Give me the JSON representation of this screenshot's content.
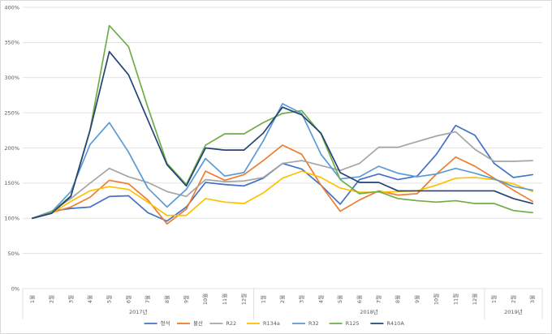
{
  "chart_data": {
    "type": "line",
    "title": "",
    "xlabel": "",
    "ylabel": "",
    "ylim": [
      0,
      400
    ],
    "y_ticks": [
      "0%",
      "50%",
      "100%",
      "150%",
      "200%",
      "250%",
      "300%",
      "350%",
      "400%"
    ],
    "grid": "horizontal",
    "legend_position": "bottom",
    "categories": [
      "1월",
      "2월",
      "3월",
      "4월",
      "5월",
      "6월",
      "7월",
      "8월",
      "9월",
      "10월",
      "11월",
      "12월",
      "1월",
      "2월",
      "3월",
      "4월",
      "5월",
      "6월",
      "7월",
      "8월",
      "9월",
      "10월",
      "11월",
      "12월",
      "1월",
      "2월",
      "3월"
    ],
    "year_groups": [
      {
        "label": "2017년",
        "count": 12
      },
      {
        "label": "2018년",
        "count": 12
      },
      {
        "label": "2019년",
        "count": 3
      }
    ],
    "series": [
      {
        "name": "형석",
        "color": "#4472C4",
        "values": [
          100,
          110,
          114,
          116,
          131,
          132,
          108,
          96,
          116,
          151,
          148,
          146,
          157,
          178,
          170,
          147,
          120,
          155,
          163,
          155,
          160,
          191,
          232,
          218,
          178,
          158,
          162
        ]
      },
      {
        "name": "불산",
        "color": "#ED7D31",
        "values": [
          100,
          108,
          116,
          130,
          154,
          149,
          126,
          92,
          113,
          167,
          154,
          162,
          182,
          204,
          191,
          147,
          110,
          126,
          139,
          133,
          135,
          163,
          187,
          174,
          157,
          140,
          124
        ]
      },
      {
        "name": "R22",
        "color": "#A5A5A5",
        "values": [
          100,
          110,
          128,
          150,
          171,
          159,
          151,
          138,
          131,
          155,
          152,
          153,
          158,
          178,
          182,
          175,
          168,
          178,
          201,
          201,
          209,
          217,
          223,
          198,
          181,
          181,
          182
        ]
      },
      {
        "name": "R134a",
        "color": "#FFC000",
        "values": [
          100,
          107,
          124,
          139,
          145,
          141,
          123,
          104,
          104,
          128,
          123,
          121,
          136,
          157,
          167,
          158,
          143,
          137,
          137,
          138,
          139,
          147,
          157,
          158,
          155,
          149,
          138
        ]
      },
      {
        "name": "R32",
        "color": "#5B9BD5",
        "values": [
          100,
          109,
          138,
          205,
          236,
          194,
          143,
          116,
          141,
          185,
          160,
          165,
          210,
          263,
          249,
          191,
          156,
          159,
          174,
          164,
          159,
          163,
          171,
          164,
          156,
          145,
          140
        ]
      },
      {
        "name": "R125",
        "color": "#70AD47",
        "values": [
          100,
          108,
          132,
          226,
          374,
          344,
          258,
          178,
          148,
          204,
          220,
          220,
          236,
          249,
          253,
          220,
          155,
          135,
          138,
          128,
          125,
          123,
          125,
          121,
          121,
          111,
          108
        ]
      },
      {
        "name": "R410A",
        "color": "#264478",
        "values": [
          100,
          107,
          131,
          225,
          337,
          304,
          240,
          176,
          146,
          200,
          197,
          197,
          221,
          258,
          247,
          221,
          165,
          151,
          151,
          139,
          139,
          139,
          139,
          139,
          139,
          128,
          121
        ]
      }
    ]
  }
}
